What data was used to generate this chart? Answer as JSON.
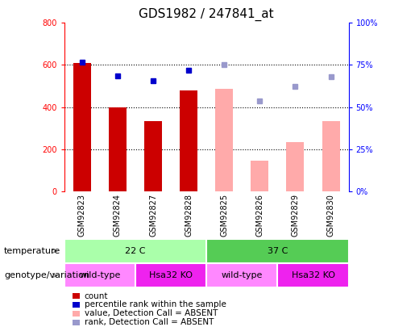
{
  "title": "GDS1982 / 247841_at",
  "samples": [
    "GSM92823",
    "GSM92824",
    "GSM92827",
    "GSM92828",
    "GSM92825",
    "GSM92826",
    "GSM92829",
    "GSM92830"
  ],
  "bar_values": [
    610,
    400,
    335,
    480,
    485,
    145,
    235,
    335
  ],
  "bar_colors": [
    "#cc0000",
    "#cc0000",
    "#cc0000",
    "#cc0000",
    "#ffaaaa",
    "#ffaaaa",
    "#ffaaaa",
    "#ffaaaa"
  ],
  "dot_values": [
    615,
    550,
    525,
    575,
    600,
    430,
    500,
    545
  ],
  "dot_colors": [
    "#0000cc",
    "#0000cc",
    "#0000cc",
    "#0000cc",
    "#9999cc",
    "#9999cc",
    "#9999cc",
    "#9999cc"
  ],
  "ylim_left": [
    0,
    800
  ],
  "ylim_right": [
    0,
    100
  ],
  "yticks_left": [
    0,
    200,
    400,
    600,
    800
  ],
  "yticks_right": [
    0,
    25,
    50,
    75,
    100
  ],
  "ytick_labels_right": [
    "0%",
    "25%",
    "50%",
    "75%",
    "100%"
  ],
  "temperature_labels": [
    "22 C",
    "37 C"
  ],
  "temperature_color_light": "#aaffaa",
  "temperature_color_dark": "#55cc55",
  "genotype_labels": [
    "wild-type",
    "Hsa32 KO",
    "wild-type",
    "Hsa32 KO"
  ],
  "genotype_color_light": "#ff88ff",
  "genotype_color_dark": "#ee22ee",
  "legend_items": [
    {
      "label": "count",
      "color": "#cc0000"
    },
    {
      "label": "percentile rank within the sample",
      "color": "#0000cc"
    },
    {
      "label": "value, Detection Call = ABSENT",
      "color": "#ffaaaa"
    },
    {
      "label": "rank, Detection Call = ABSENT",
      "color": "#9999cc"
    }
  ],
  "title_fontsize": 11,
  "tick_fontsize": 7,
  "legend_fontsize": 7.5,
  "row_label_fontsize": 8,
  "xticklabel_bg": "#cccccc",
  "plot_bg": "#ffffff",
  "fig_bg": "#ffffff"
}
